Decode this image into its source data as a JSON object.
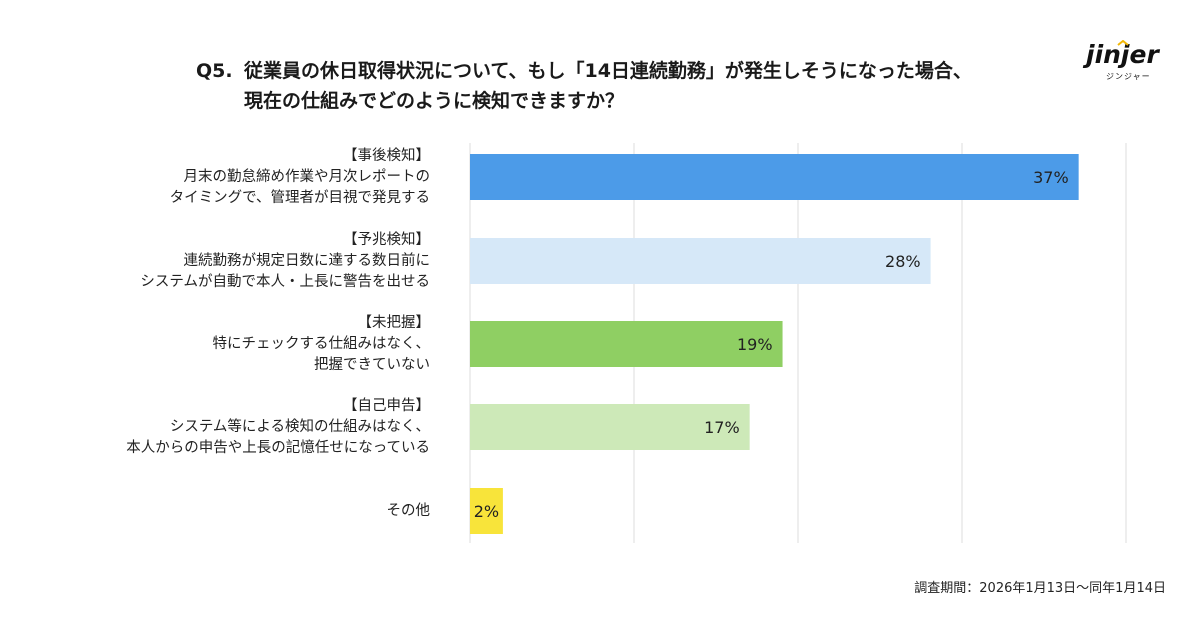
{
  "header": {
    "question_number": "Q5.",
    "question_line1": "従業員の休日取得状況について、もし「14日連続勤務」が発生しそうになった場合、",
    "question_line2": "現在の仕組みでどのように検知できますか？"
  },
  "logo": {
    "wordmark": "jinjer",
    "subtext": "ジンジャー",
    "icon": "jinjer-logo"
  },
  "colors": {
    "bar_blue_dark": "#4c9be8",
    "bar_blue_light": "#d6e8f8",
    "bar_green_dark": "#8fcf63",
    "bar_green_light": "#cde9b8",
    "bar_yellow": "#f8e43a",
    "gridline": "#dddddd"
  },
  "chart_data": {
    "type": "bar",
    "orientation": "horizontal",
    "categories": [
      [
        "【事後検知】",
        "月末の勤怠締め作業や月次レポートの",
        "タイミングで、管理者が目視で発見する"
      ],
      [
        "【予兆検知】",
        "連続勤務が規定日数に達する数日前に",
        "システムが自動で本人・上長に警告を出せる"
      ],
      [
        "【未把握】",
        "特にチェックする仕組みはなく、",
        "把握できていない"
      ],
      [
        "【自己申告】",
        "システム等による検知の仕組みはなく、",
        "本人からの申告や上長の記憶任せになっている"
      ],
      [
        "その他"
      ]
    ],
    "values": [
      37,
      28,
      19,
      17,
      2
    ],
    "value_labels": [
      "37%",
      "28%",
      "19%",
      "17%",
      "2%"
    ],
    "bar_colors": [
      "#4c9be8",
      "#d6e8f8",
      "#8fcf63",
      "#cde9b8",
      "#f8e43a"
    ],
    "xlim": [
      0,
      40
    ],
    "grid": true,
    "gridline_count": 5
  },
  "footnote": "調査期間：2026年1月13日〜同年1月14日"
}
